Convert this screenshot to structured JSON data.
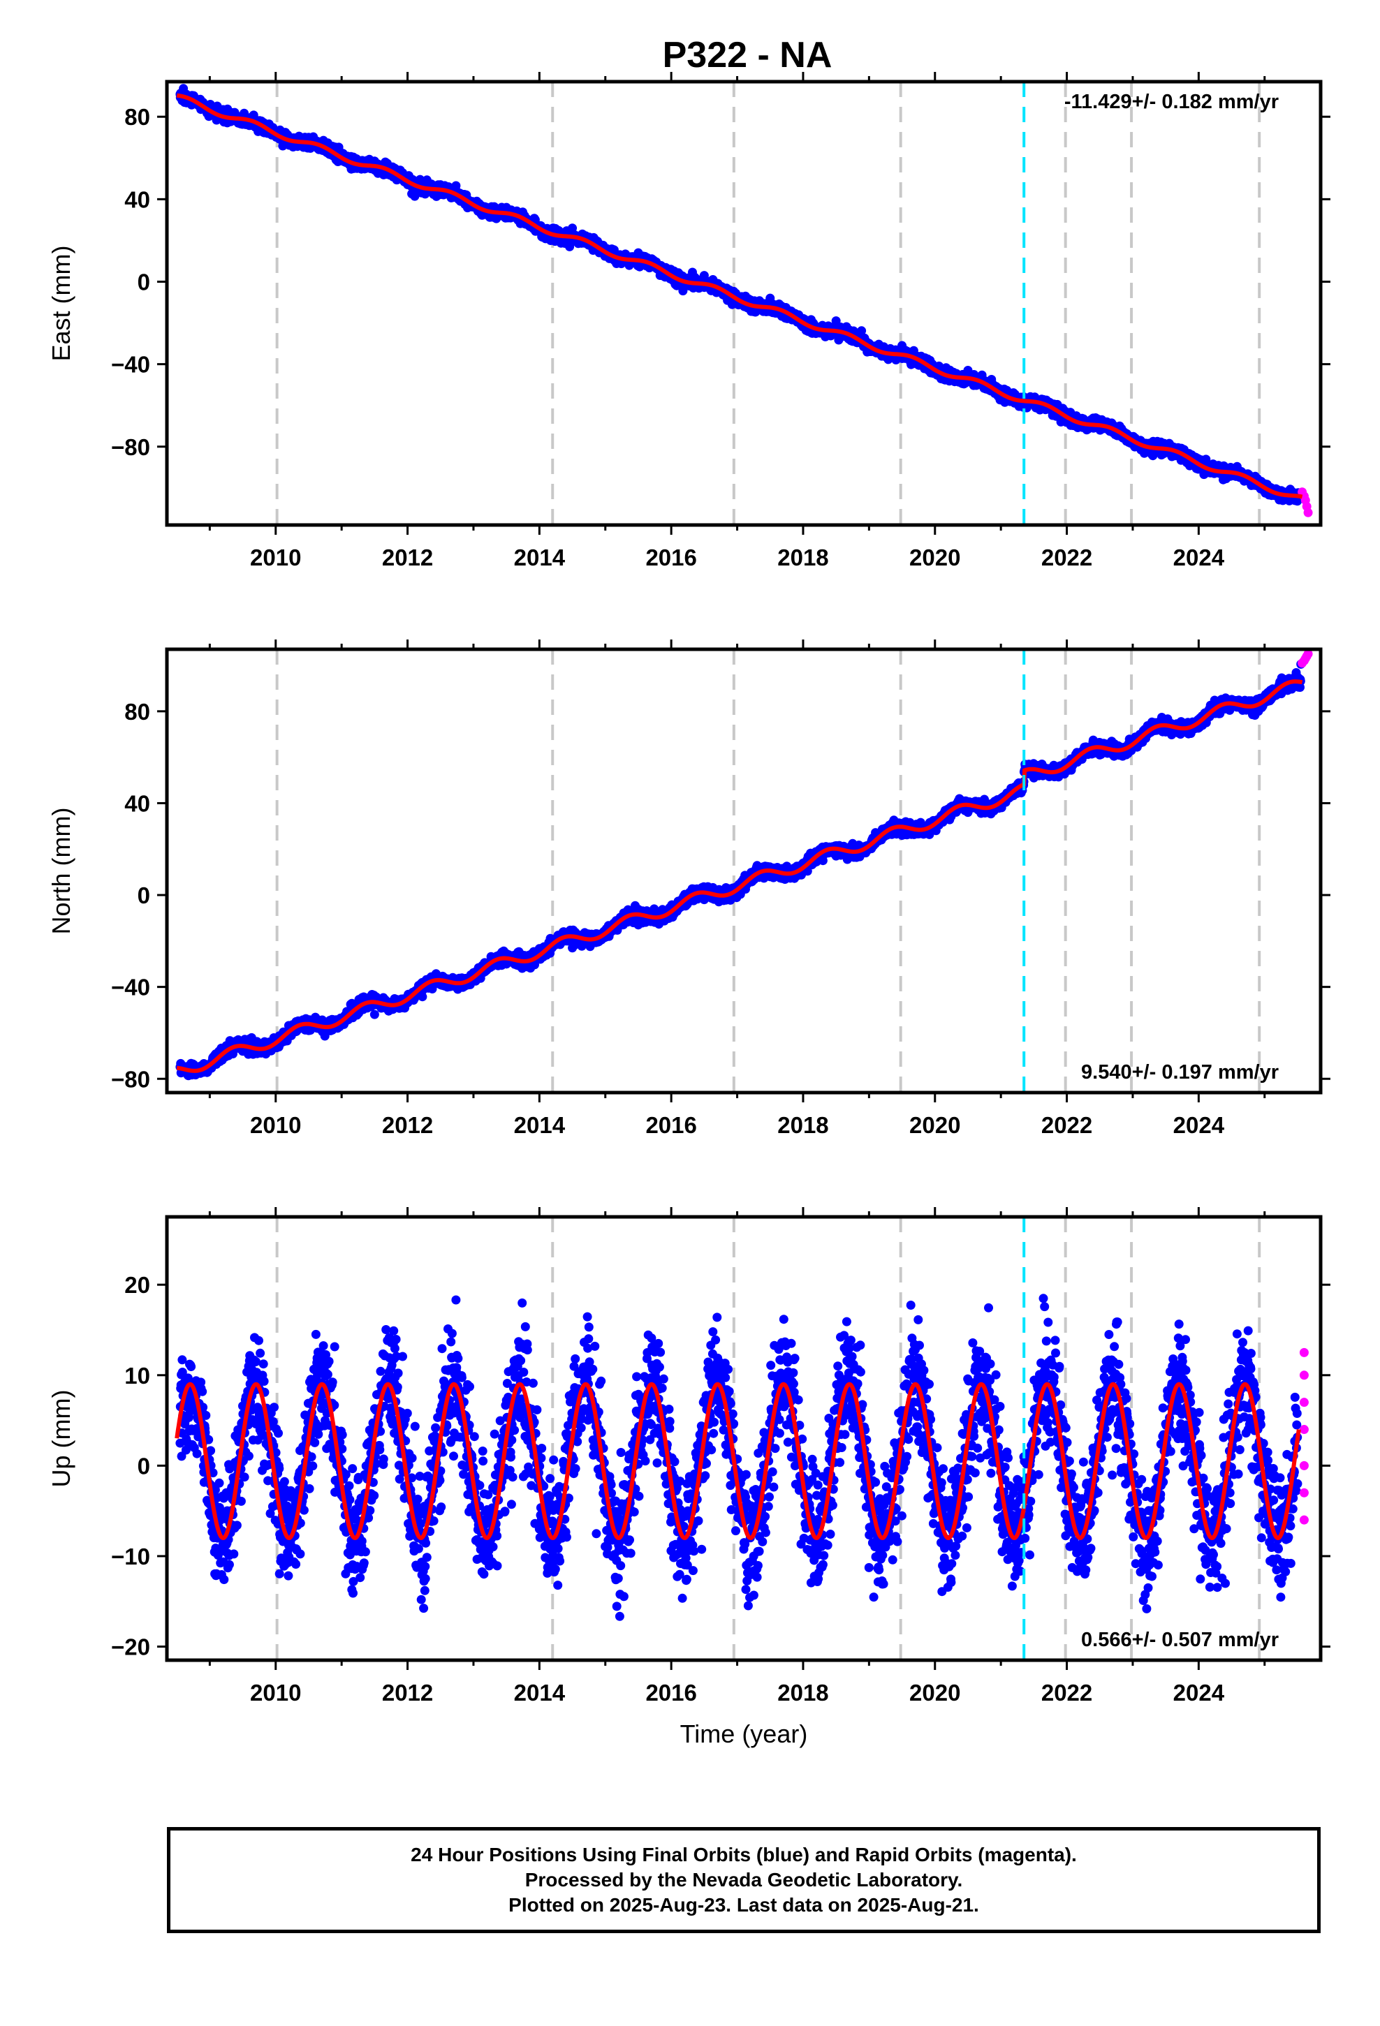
{
  "title": "P322 - NA",
  "footer": {
    "line1": "24 Hour Positions Using Final Orbits (blue) and Rapid Orbits (magenta).",
    "line2": "Processed by the Nevada Geodetic Laboratory.",
    "line3": "Plotted on 2025-Aug-23. Last data on 2025-Aug-21."
  },
  "chart_data": [
    {
      "type": "scatter",
      "ylabel": "East (mm)",
      "xlabel": "",
      "xlim": [
        2008.35,
        2025.85
      ],
      "ylim": [
        -118,
        97
      ],
      "xticks": [
        2010,
        2012,
        2014,
        2016,
        2018,
        2020,
        2022,
        2024
      ],
      "yticks": [
        -80,
        -40,
        0,
        40,
        80
      ],
      "rate_label": "-11.429+/- 0.182 mm/yr",
      "rate_position": "top-right",
      "trend": {
        "start_year": 2008.5,
        "start_value": 89.5,
        "rate_mm_per_yr": -11.429,
        "annual_amplitude": 1.5,
        "annual_phase": 0.6
      },
      "scatter_sd": 1.4,
      "series": [
        {
          "color": "#0000ff",
          "values": [
            [
              2008.6,
              89.3
            ],
            [
              2009.5,
              80.0
            ],
            [
              2010.5,
              70.0
            ],
            [
              2011.5,
              58.5
            ],
            [
              2012.5,
              47.0
            ],
            [
              2013.5,
              36.0
            ],
            [
              2014.5,
              26.0
            ],
            [
              2015.5,
              14.0
            ],
            [
              2016.5,
              3.0
            ],
            [
              2017.5,
              -8.0
            ],
            [
              2018.5,
              -19.0
            ],
            [
              2019.5,
              -31.0
            ],
            [
              2020.5,
              -43.0
            ],
            [
              2021.5,
              -57.0
            ],
            [
              2022.5,
              -67.0
            ],
            [
              2023.5,
              -79.0
            ],
            [
              2024.5,
              -91.0
            ],
            [
              2025.55,
              -104.5
            ]
          ]
        },
        {
          "color": "#ff00ff",
          "values": [
            [
              2025.57,
              -102.0
            ],
            [
              2025.6,
              -104.0
            ],
            [
              2025.62,
              -106.0
            ],
            [
              2025.64,
              -109.0
            ],
            [
              2025.66,
              -112.0
            ]
          ]
        },
        {
          "color": "#ff0000",
          "values": []
        }
      ],
      "vlines_gray": [
        2010.02,
        2014.2,
        2016.95,
        2019.48,
        2021.98,
        2022.98,
        2024.92
      ],
      "vline_cyan": 2021.35
    },
    {
      "type": "scatter",
      "ylabel": "North (mm)",
      "xlabel": "",
      "xlim": [
        2008.35,
        2025.85
      ],
      "ylim": [
        -86,
        107
      ],
      "xticks": [
        2010,
        2012,
        2014,
        2016,
        2018,
        2020,
        2022,
        2024
      ],
      "yticks": [
        -80,
        -40,
        0,
        40,
        80
      ],
      "rate_label": "9.540+/- 0.197 mm/yr",
      "rate_position": "bottom-right",
      "trend": {
        "start_year": 2008.5,
        "start_value": -77.0,
        "rate_mm_per_yr": 9.54,
        "annual_amplitude": 2.6,
        "annual_phase": 2.4,
        "offset_year": 2021.35,
        "offset_mm": 6.0
      },
      "scatter_sd": 1.3,
      "series": [
        {
          "color": "#0000ff",
          "values": [
            [
              2008.6,
              -76.0
            ],
            [
              2009.5,
              -68.0
            ],
            [
              2010.5,
              -59.0
            ],
            [
              2011.5,
              -52.0
            ],
            [
              2012.5,
              -39.0
            ],
            [
              2013.5,
              -30.0
            ],
            [
              2014.5,
              -23.0
            ],
            [
              2015.5,
              -13.0
            ],
            [
              2016.5,
              -2.0
            ],
            [
              2017.5,
              8.0
            ],
            [
              2018.5,
              17.0
            ],
            [
              2019.5,
              26.0
            ],
            [
              2020.5,
              36.0
            ],
            [
              2021.5,
              51.0
            ],
            [
              2022.5,
              61.0
            ],
            [
              2023.5,
              71.0
            ],
            [
              2024.5,
              82.0
            ],
            [
              2025.55,
              100.5
            ]
          ]
        },
        {
          "color": "#ff00ff",
          "values": [
            [
              2025.57,
              101.0
            ],
            [
              2025.6,
              102.0
            ],
            [
              2025.62,
              103.0
            ],
            [
              2025.64,
              104.0
            ],
            [
              2025.66,
              105.0
            ]
          ]
        },
        {
          "color": "#ff0000",
          "values": []
        }
      ],
      "vlines_gray": [
        2010.02,
        2014.2,
        2016.95,
        2019.48,
        2021.98,
        2022.98,
        2024.92
      ],
      "vline_cyan": 2021.35
    },
    {
      "type": "scatter",
      "ylabel": "Up (mm)",
      "xlabel": "Time (year)",
      "xlim": [
        2008.35,
        2025.85
      ],
      "ylim": [
        -21.5,
        27.5
      ],
      "xticks": [
        2010,
        2012,
        2014,
        2016,
        2018,
        2020,
        2022,
        2024
      ],
      "yticks": [
        -20,
        -10,
        0,
        10,
        20
      ],
      "rate_label": "0.566+/- 0.507 mm/yr",
      "rate_position": "bottom-right",
      "trend": {
        "start_year": 2008.5,
        "start_value": 0.5,
        "rate_mm_per_yr": 0.0,
        "annual_amplitude": 8.5,
        "annual_phase": 0.3
      },
      "scatter_sd": 3.2,
      "series": [
        {
          "color": "#0000ff",
          "values": [
            [
              2008.7,
              9.0
            ],
            [
              2009.25,
              -3.0
            ],
            [
              2009.7,
              11.5
            ],
            [
              2010.25,
              -9.0
            ],
            [
              2010.75,
              5.0
            ],
            [
              2011.25,
              -9.0
            ],
            [
              2011.75,
              5.0
            ],
            [
              2012.25,
              -8.0
            ],
            [
              2012.75,
              6.0
            ],
            [
              2013.25,
              -8.0
            ],
            [
              2013.75,
              6.5
            ],
            [
              2014.25,
              -6.5
            ],
            [
              2014.75,
              8.0
            ],
            [
              2015.25,
              -6.0
            ],
            [
              2015.75,
              8.5
            ],
            [
              2016.25,
              -5.0
            ],
            [
              2016.75,
              9.0
            ],
            [
              2017.25,
              -10.0
            ],
            [
              2017.75,
              4.5
            ],
            [
              2018.25,
              -9.0
            ],
            [
              2018.75,
              5.0
            ],
            [
              2019.25,
              -9.0
            ],
            [
              2019.75,
              7.0
            ],
            [
              2020.25,
              -7.0
            ],
            [
              2020.75,
              7.5
            ],
            [
              2021.25,
              -6.5
            ],
            [
              2021.75,
              8.0
            ],
            [
              2022.25,
              -6.0
            ],
            [
              2022.75,
              8.5
            ],
            [
              2023.25,
              -11.0
            ],
            [
              2023.75,
              3.0
            ],
            [
              2024.25,
              -11.0
            ],
            [
              2024.75,
              4.0
            ],
            [
              2025.25,
              -13.0
            ],
            [
              2025.5,
              -2.0
            ]
          ]
        },
        {
          "color": "#ff00ff",
          "values": [
            [
              2025.6,
              12.5
            ],
            [
              2025.6,
              10.0
            ],
            [
              2025.6,
              7.0
            ],
            [
              2025.6,
              4.0
            ],
            [
              2025.6,
              0.0
            ],
            [
              2025.6,
              -3.0
            ],
            [
              2025.6,
              -6.0
            ]
          ]
        },
        {
          "color": "#ff0000",
          "values": []
        }
      ],
      "vlines_gray": [
        2010.02,
        2014.2,
        2016.95,
        2019.48,
        2021.98,
        2022.98,
        2024.92
      ],
      "vline_cyan": 2021.35
    }
  ]
}
